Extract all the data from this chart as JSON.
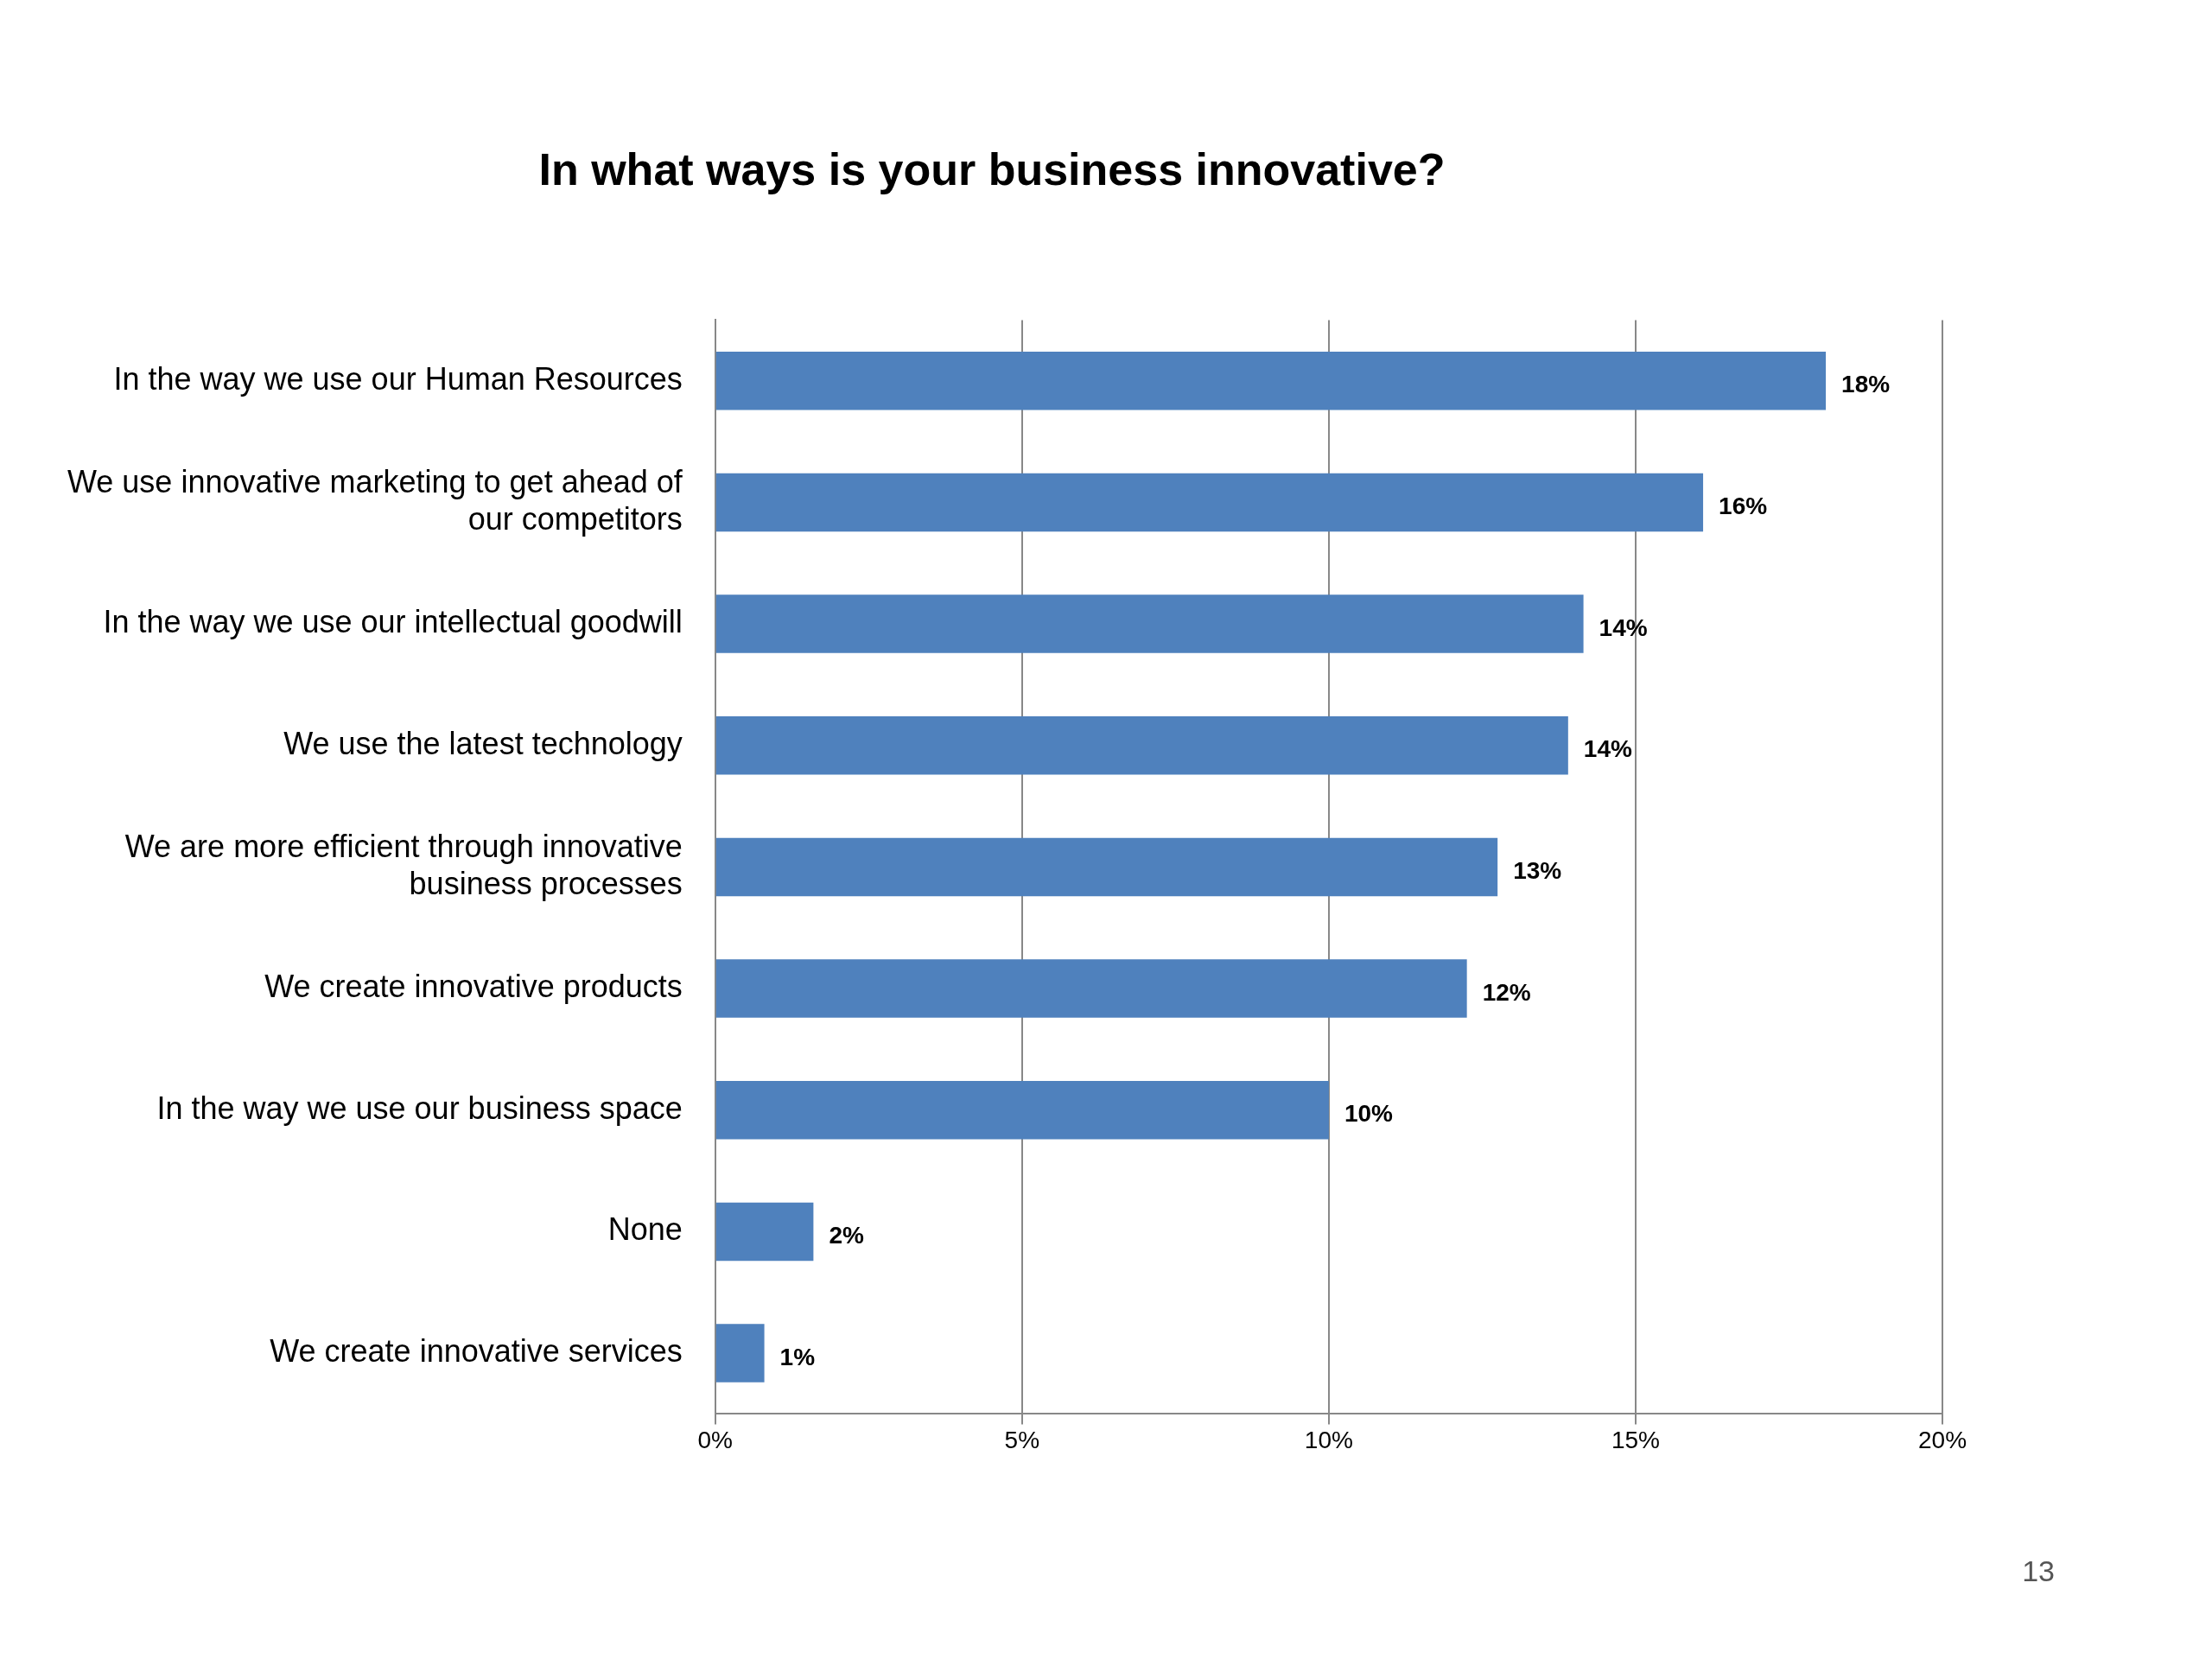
{
  "chart_data": {
    "type": "bar",
    "orientation": "horizontal",
    "title": "In what ways is your business innovative?",
    "categories": [
      "In the way we use our Human Resources",
      "We use innovative marketing to get ahead of our competitors",
      "In the way we use our intellectual goodwill",
      "We use the latest technology",
      "We are more efficient through innovative business processes",
      "We create innovative products",
      "In the way we use our business space",
      "None",
      "We create innovative services"
    ],
    "values": [
      18.1,
      16.1,
      14.15,
      13.9,
      12.75,
      12.25,
      10.0,
      1.6,
      0.8
    ],
    "value_labels": [
      "18%",
      "16%",
      "14%",
      "14%",
      "13%",
      "12%",
      "10%",
      "2%",
      "1%"
    ],
    "color": "#4f81bd",
    "xlim": [
      0,
      20
    ],
    "xticks": [
      {
        "value": 0,
        "label": "0%"
      },
      {
        "value": 5,
        "label": "5%"
      },
      {
        "value": 10,
        "label": "10%"
      },
      {
        "value": 15,
        "label": "15%"
      },
      {
        "value": 20,
        "label": "20%"
      }
    ],
    "grid": "x",
    "legend": false,
    "annotations": [
      "13"
    ]
  }
}
